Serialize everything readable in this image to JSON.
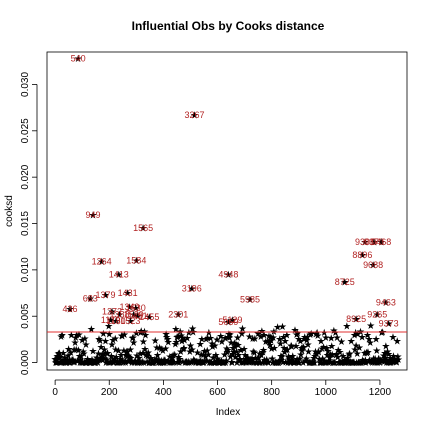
{
  "chart_data": {
    "type": "scatter",
    "title": "Influential Obs by Cooks distance",
    "xlabel": "Index",
    "ylabel": "cooksd",
    "xlim": [
      -30,
      1300
    ],
    "ylim": [
      -0.0008,
      0.0335
    ],
    "xticks": [
      "0",
      "200",
      "400",
      "600",
      "800",
      "1000",
      "1200"
    ],
    "xtick_values": [
      0,
      200,
      400,
      600,
      800,
      1000,
      1200
    ],
    "yticks": [
      "0.000",
      "0.005",
      "0.010",
      "0.015",
      "0.020",
      "0.025",
      "0.030"
    ],
    "ytick_values": [
      0,
      0.005,
      0.01,
      0.015,
      0.02,
      0.025,
      0.03
    ],
    "threshold": 0.0033,
    "threshold_color": "#e03030",
    "point_marker": "star",
    "label_color": "#b22222",
    "influential_points": [
      {
        "label": "540",
        "x": 85,
        "y": 0.0328
      },
      {
        "label": "3267",
        "x": 515,
        "y": 0.0267
      },
      {
        "label": "949",
        "x": 140,
        "y": 0.0159
      },
      {
        "label": "1565",
        "x": 325,
        "y": 0.0145
      },
      {
        "label": "1264",
        "x": 172,
        "y": 0.0109
      },
      {
        "label": "1584",
        "x": 300,
        "y": 0.011
      },
      {
        "label": "1413",
        "x": 235,
        "y": 0.0095
      },
      {
        "label": "4948",
        "x": 640,
        "y": 0.0095
      },
      {
        "label": "3196",
        "x": 505,
        "y": 0.008
      },
      {
        "label": "1431",
        "x": 268,
        "y": 0.0075
      },
      {
        "label": "1379",
        "x": 186,
        "y": 0.0073
      },
      {
        "label": "683",
        "x": 130,
        "y": 0.0069
      },
      {
        "label": "5985",
        "x": 720,
        "y": 0.0068
      },
      {
        "label": "436",
        "x": 55,
        "y": 0.0058
      },
      {
        "label": "1349",
        "x": 275,
        "y": 0.006
      },
      {
        "label": "1530",
        "x": 298,
        "y": 0.0059
      },
      {
        "label": "1272",
        "x": 210,
        "y": 0.0055
      },
      {
        "label": "1388",
        "x": 238,
        "y": 0.0052
      },
      {
        "label": "1520",
        "x": 290,
        "y": 0.0052
      },
      {
        "label": "2301",
        "x": 455,
        "y": 0.0052
      },
      {
        "label": "1451",
        "x": 305,
        "y": 0.005
      },
      {
        "label": "1455",
        "x": 348,
        "y": 0.0049
      },
      {
        "label": "1170",
        "x": 205,
        "y": 0.0046
      },
      {
        "label": "1180",
        "x": 225,
        "y": 0.0045
      },
      {
        "label": "1523",
        "x": 278,
        "y": 0.0045
      },
      {
        "label": "5129",
        "x": 655,
        "y": 0.0046
      },
      {
        "label": "5069",
        "x": 640,
        "y": 0.0044
      },
      {
        "label": "9306",
        "x": 1145,
        "y": 0.013
      },
      {
        "label": "9378",
        "x": 1178,
        "y": 0.013
      },
      {
        "label": "9468",
        "x": 1205,
        "y": 0.013
      },
      {
        "label": "8896",
        "x": 1135,
        "y": 0.0116
      },
      {
        "label": "9088",
        "x": 1175,
        "y": 0.0105
      },
      {
        "label": "8725",
        "x": 1070,
        "y": 0.0087
      },
      {
        "label": "9463",
        "x": 1222,
        "y": 0.0065
      },
      {
        "label": "9265",
        "x": 1190,
        "y": 0.0052
      },
      {
        "label": "8925",
        "x": 1112,
        "y": 0.0047
      },
      {
        "label": "9373",
        "x": 1232,
        "y": 0.0042
      }
    ]
  }
}
